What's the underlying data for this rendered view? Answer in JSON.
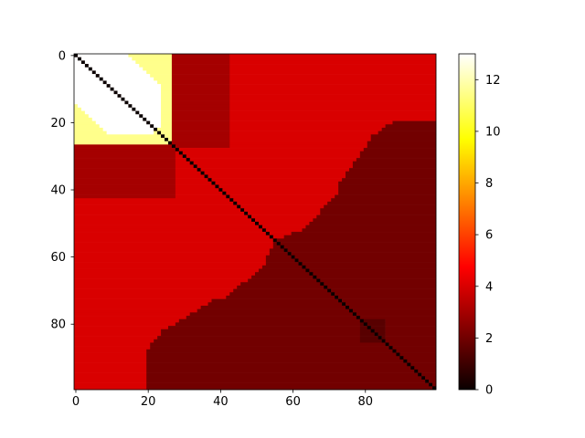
{
  "chart_data": {
    "type": "heatmap",
    "title": "",
    "xlabel": "",
    "ylabel": "",
    "colormap": "hot",
    "matrix_size": [
      100,
      100
    ],
    "xlim": [
      0,
      99
    ],
    "ylim": [
      99,
      0
    ],
    "x_ticks": [
      0,
      20,
      40,
      60,
      80
    ],
    "y_ticks": [
      0,
      20,
      40,
      60,
      80
    ],
    "colorbar": {
      "range": [
        0,
        13
      ],
      "ticks": [
        0,
        2,
        4,
        6,
        8,
        10,
        12
      ]
    },
    "regions": [
      {
        "label": "diagonal",
        "value": 0,
        "description": "zero distance on the main diagonal"
      },
      {
        "label": "cluster-a-interior",
        "value": 13,
        "rows": [
          0,
          22
        ],
        "cols": [
          0,
          22
        ]
      },
      {
        "label": "cluster-a-edge",
        "value": 11.5,
        "rows": [
          0,
          27
        ],
        "cols": [
          0,
          27
        ]
      },
      {
        "label": "cluster-a-to-b",
        "value": 3,
        "rows": [
          0,
          42
        ],
        "cols": [
          0,
          42
        ]
      },
      {
        "label": "mid-region",
        "value": 4,
        "rows": [
          0,
          99
        ],
        "cols": [
          0,
          99
        ]
      },
      {
        "label": "cluster-c",
        "value": 2,
        "rows": [
          55,
          99
        ],
        "cols": [
          55,
          99
        ]
      },
      {
        "label": "small-block",
        "value": 1.5,
        "rows": [
          79,
          85
        ],
        "cols": [
          79,
          85
        ]
      }
    ]
  }
}
